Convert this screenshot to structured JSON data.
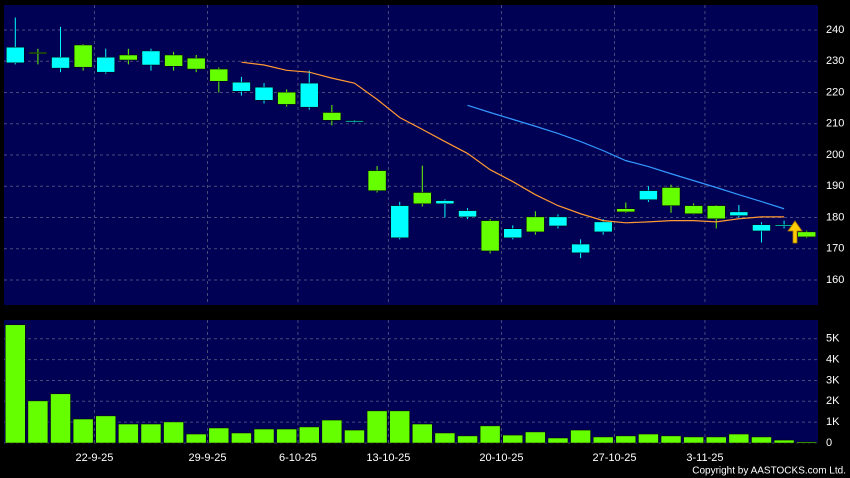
{
  "chart_data": [
    {
      "type": "candlestick",
      "open": [
        234.5,
        232.5,
        231.3,
        228.1,
        231.3,
        230.4,
        233.3,
        228.4,
        227.5,
        223.6,
        223.3,
        221.7,
        216.2,
        223.0,
        211.1,
        211.0,
        188.6,
        183.8,
        184.4,
        185.4,
        182.2,
        169.3,
        176.4,
        175.4,
        180.2,
        171.5,
        178.6,
        181.8,
        188.6,
        183.8,
        181.2,
        179.6,
        181.8,
        177.7,
        177.7,
        173.8
      ],
      "high": [
        244,
        234,
        241,
        235.5,
        234,
        234,
        234,
        233,
        232,
        228,
        225,
        223,
        221,
        227,
        216,
        211.2,
        196.5,
        185,
        196.6,
        185.8,
        183,
        179.5,
        177.5,
        182,
        181,
        173,
        179.5,
        184.8,
        190,
        190.5,
        184.5,
        184,
        184,
        178.5,
        179,
        175.8
      ],
      "low": [
        229,
        229,
        226.5,
        227,
        226,
        229,
        227,
        227,
        226.5,
        220,
        219,
        216.5,
        215.5,
        214.5,
        209.5,
        210.4,
        188,
        173,
        183.5,
        180,
        179.5,
        168.5,
        173,
        174.5,
        176.5,
        167,
        174.5,
        181.5,
        185,
        181.5,
        181,
        176.5,
        180,
        172,
        176.5,
        173.5
      ],
      "close": [
        229.5,
        232.8,
        227.8,
        235.2,
        226.5,
        232,
        228.8,
        232,
        231,
        227.5,
        220.4,
        217.5,
        220.1,
        215.3,
        213.6,
        210.6,
        195,
        173.5,
        188,
        184.4,
        180.2,
        179,
        173.5,
        180.2,
        177.3,
        168.7,
        175.4,
        182.8,
        185.7,
        189.6,
        183.8,
        183.8,
        180.6,
        175.7,
        177.3,
        175.4
      ],
      "up_color": "#66ff00",
      "down_color": "#00ffff",
      "series": [
        {
          "color": "#ff9933",
          "values": [
            null,
            null,
            null,
            null,
            null,
            null,
            null,
            null,
            null,
            null,
            229.7,
            228.8,
            227.1,
            226.5,
            224.6,
            223.0,
            217.8,
            212.0,
            208.2,
            204.3,
            200.5,
            195.3,
            191.5,
            187.3,
            183.8,
            181.2,
            179.0,
            178.3,
            178.6,
            179.0,
            179.0,
            178.6,
            179.6,
            180.2,
            180.2,
            null
          ]
        },
        {
          "color": "#3399ff",
          "values": [
            null,
            null,
            null,
            null,
            null,
            null,
            null,
            null,
            null,
            null,
            null,
            null,
            null,
            null,
            null,
            null,
            null,
            null,
            null,
            null,
            215.9,
            213.6,
            211.4,
            209.2,
            206.9,
            204.3,
            201.4,
            198.2,
            196.3,
            194.0,
            191.8,
            189.6,
            187.3,
            185.1,
            182.8,
            null
          ]
        }
      ],
      "ylim": [
        152,
        248
      ],
      "yticks": [
        160,
        170,
        180,
        190,
        200,
        210,
        220,
        230,
        240
      ],
      "grid": true
    },
    {
      "type": "bar",
      "categories": [
        null,
        null,
        null,
        null,
        "22-9-25",
        null,
        null,
        null,
        null,
        "29-9-25",
        null,
        null,
        null,
        "6-10-25",
        null,
        null,
        null,
        "13-10-25",
        null,
        null,
        null,
        null,
        "20-10-25",
        null,
        null,
        null,
        null,
        "27-10-25",
        null,
        null,
        null,
        "3-11-25",
        null,
        null,
        null,
        null
      ],
      "values": [
        5670,
        2020,
        2360,
        1150,
        1300,
        910,
        910,
        1010,
        430,
        720,
        480,
        670,
        670,
        770,
        1100,
        620,
        1540,
        1540,
        910,
        480,
        340,
        820,
        380,
        530,
        240,
        620,
        290,
        340,
        430,
        340,
        290,
        290,
        430,
        290,
        140,
        50
      ],
      "color": "#66ff00",
      "ylim": [
        0,
        5900
      ],
      "yticks": [
        0,
        {
          "value": 1000,
          "label": "1K"
        },
        {
          "value": 2000,
          "label": "2K"
        },
        {
          "value": 3000,
          "label": "3K"
        },
        {
          "value": 4000,
          "label": "4K"
        },
        {
          "value": 5000,
          "label": "5K"
        }
      ],
      "grid": true
    }
  ],
  "footer": "Copyright by AASTOCKS.com Ltd."
}
